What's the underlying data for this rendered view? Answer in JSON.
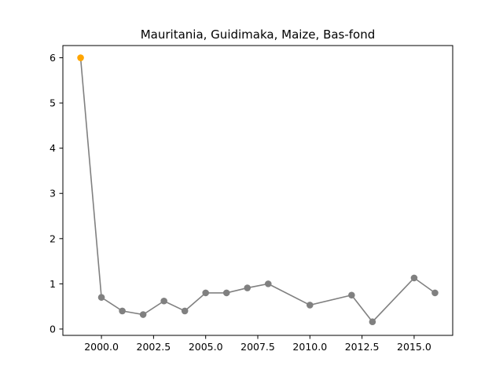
{
  "chart_data": {
    "type": "line",
    "title": "Mauritania, Guidimaka, Maize, Bas-fond",
    "xlabel": "",
    "ylabel": "",
    "xlim": [
      1998.15,
      2016.85
    ],
    "ylim": [
      -0.14,
      6.27
    ],
    "x_ticks": [
      2000.0,
      2002.5,
      2005.0,
      2007.5,
      2010.0,
      2012.5,
      2015.0
    ],
    "x_tick_labels": [
      "2000.0",
      "2002.5",
      "2005.0",
      "2007.5",
      "2010.0",
      "2012.5",
      "2015.0"
    ],
    "y_ticks": [
      0,
      1,
      2,
      3,
      4,
      5,
      6
    ],
    "y_tick_labels": [
      "0",
      "1",
      "2",
      "3",
      "4",
      "5",
      "6"
    ],
    "grid": false,
    "line_color": "#808080",
    "highlight_color": "#FFA500",
    "series": [
      {
        "x": [
          1999,
          2000,
          2001,
          2002,
          2003,
          2004,
          2005,
          2006,
          2007,
          2008,
          2010,
          2012,
          2013,
          2015,
          2016
        ],
        "values": [
          6.0,
          0.7,
          0.4,
          0.32,
          0.62,
          0.4,
          0.8,
          0.8,
          0.91,
          1.0,
          0.53,
          0.75,
          0.16,
          1.13,
          0.8
        ],
        "highlight_index": 0
      }
    ]
  }
}
